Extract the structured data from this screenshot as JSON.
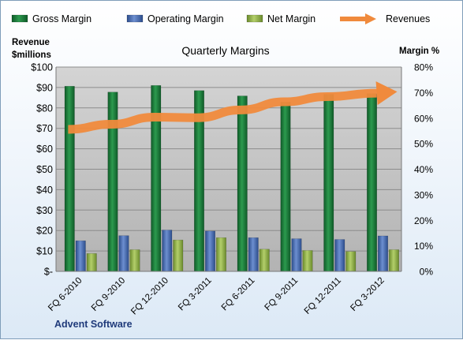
{
  "chart_data": {
    "type": "bar",
    "title": "Quarterly Margins",
    "company": "Advent Software",
    "categories": [
      "FQ 6-2010",
      "FQ 9-2010",
      "FQ 12-2010",
      "FQ 3-2011",
      "FQ 6-2011",
      "FQ 9-2011",
      "FQ 12-2011",
      "FQ 3-2012"
    ],
    "left_axis": {
      "label_line1": "Revenue",
      "label_line2": "$millions",
      "ylim": [
        0,
        100
      ],
      "ticks": [
        "$-",
        "$10",
        "$20",
        "$30",
        "$40",
        "$50",
        "$60",
        "$70",
        "$80",
        "$90",
        "$100"
      ]
    },
    "right_axis": {
      "label": "Margin %",
      "ylim": [
        0,
        80
      ],
      "ticks": [
        "0%",
        "10%",
        "20%",
        "30%",
        "40%",
        "50%",
        "60%",
        "70%",
        "80%"
      ]
    },
    "series": [
      {
        "name": "Gross Margin",
        "axis": "right",
        "kind": "bar",
        "color": "#1e7d3c",
        "values": [
          72.5,
          70.2,
          72.8,
          70.8,
          68.7,
          66.3,
          69.3,
          69.6
        ]
      },
      {
        "name": "Operating Margin",
        "axis": "right",
        "kind": "bar",
        "color": "#4a6fb5",
        "values": [
          12.0,
          14.0,
          16.2,
          15.8,
          13.2,
          12.8,
          12.5,
          13.9
        ]
      },
      {
        "name": "Net Margin",
        "axis": "right",
        "kind": "bar",
        "color": "#8fae46",
        "values": [
          7.0,
          8.5,
          12.3,
          13.2,
          8.7,
          8.2,
          7.8,
          8.5
        ]
      },
      {
        "name": "Revenues",
        "axis": "left",
        "kind": "line",
        "color": "#f08a3c",
        "values": [
          69.5,
          72.0,
          75.5,
          75.2,
          79.0,
          83.0,
          85.5,
          87.0
        ]
      }
    ],
    "grid": true,
    "legend": "top"
  }
}
